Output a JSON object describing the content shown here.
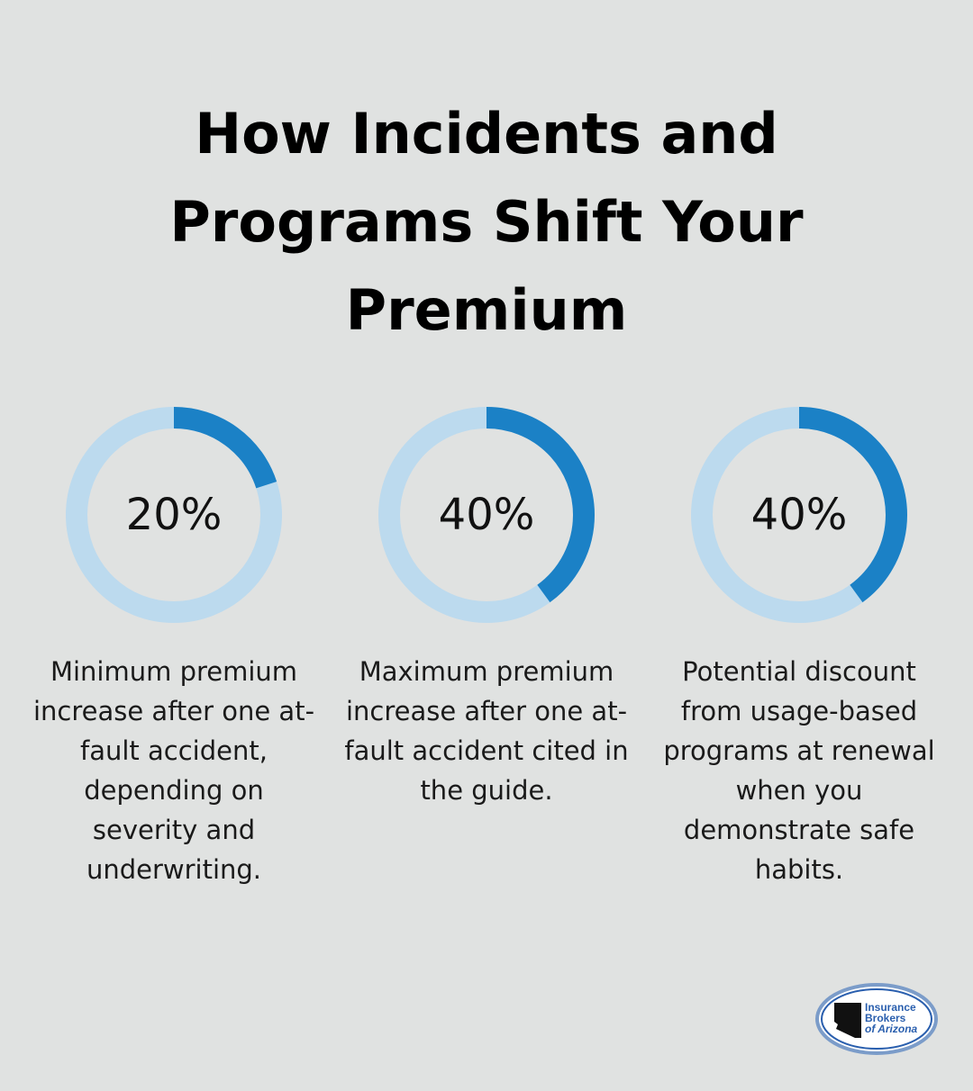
{
  "title": "How Incidents and Programs Shift Your Premium",
  "colors": {
    "background": "#e0e2e1",
    "ring_track": "#bcdaee",
    "ring_fill": "#1b81c6",
    "logo_blue": "#2a5fae"
  },
  "chart_data": {
    "type": "donut",
    "items": [
      {
        "label": "20%",
        "value": 20,
        "description": "Minimum premium increase after one at-fault accident, depending on severity and underwriting."
      },
      {
        "label": "40%",
        "value": 40,
        "description": "Maximum premium increase after one at-fault accident cited in the guide."
      },
      {
        "label": "40%",
        "value": 40,
        "description": "Potential discount from usage-based programs at renewal when you demonstrate safe habits."
      }
    ]
  },
  "logo": {
    "line1": "Insurance",
    "line2": "Brokers",
    "line3": "of Arizona"
  }
}
